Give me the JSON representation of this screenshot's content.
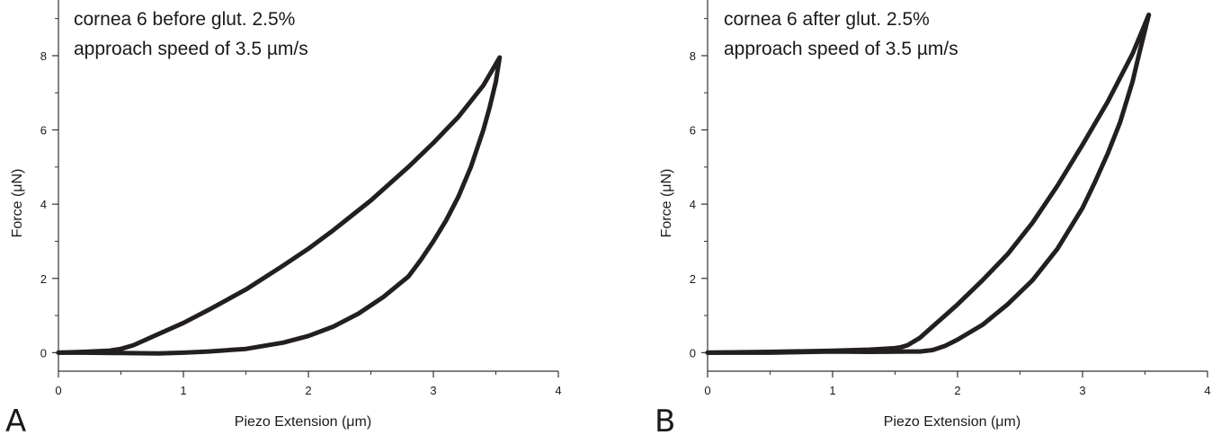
{
  "chart_data": [
    {
      "type": "line",
      "panel_label": "A",
      "annotation_lines": [
        "cornea 6  before glut. 2.5%",
        "approach speed of 3.5 µm/s"
      ],
      "xlabel": "Piezo Extension  (μm)",
      "ylabel": "Force (μN)",
      "xlim": [
        0,
        4
      ],
      "ylim": [
        -0.5,
        9.5
      ],
      "xticks": [
        0,
        1,
        2,
        3,
        4
      ],
      "yticks": [
        0,
        2,
        4,
        6,
        8
      ],
      "grid": false,
      "series": [
        {
          "x": [
            0,
            0.2,
            0.4,
            0.5,
            0.6,
            0.8,
            1.0,
            1.2,
            1.5,
            1.8,
            2.0,
            2.2,
            2.5,
            2.8,
            3.0,
            3.2,
            3.4,
            3.53
          ],
          "y": [
            0,
            0.02,
            0.05,
            0.1,
            0.2,
            0.5,
            0.8,
            1.15,
            1.7,
            2.35,
            2.8,
            3.3,
            4.1,
            5.0,
            5.65,
            6.35,
            7.2,
            7.95
          ]
        },
        {
          "x": [
            3.53,
            3.5,
            3.45,
            3.4,
            3.3,
            3.2,
            3.1,
            3.0,
            2.9,
            2.8,
            2.6,
            2.4,
            2.2,
            2.0,
            1.8,
            1.5,
            1.2,
            1.0,
            0.8,
            0.5,
            0.2,
            0.0
          ],
          "y": [
            7.95,
            7.3,
            6.6,
            6.0,
            5.0,
            4.2,
            3.55,
            3.0,
            2.5,
            2.05,
            1.5,
            1.05,
            0.7,
            0.45,
            0.27,
            0.1,
            0.03,
            0.0,
            -0.02,
            -0.01,
            0.0,
            0.0
          ]
        }
      ]
    },
    {
      "type": "line",
      "panel_label": "B",
      "annotation_lines": [
        "cornea 6   after glut. 2.5%",
        "approach speed of 3.5 µm/s"
      ],
      "xlabel": "Piezo Extension  (μm)",
      "ylabel": "Force (μN)",
      "xlim": [
        0,
        4
      ],
      "ylim": [
        -0.5,
        9.5
      ],
      "xticks": [
        0,
        1,
        2,
        3,
        4
      ],
      "yticks": [
        0,
        2,
        4,
        6,
        8
      ],
      "grid": false,
      "series": [
        {
          "x": [
            0,
            0.5,
            1.0,
            1.3,
            1.5,
            1.55,
            1.6,
            1.7,
            1.8,
            1.9,
            2.0,
            2.2,
            2.4,
            2.6,
            2.8,
            3.0,
            3.2,
            3.4,
            3.53
          ],
          "y": [
            0,
            0.02,
            0.05,
            0.08,
            0.12,
            0.15,
            0.2,
            0.4,
            0.7,
            1.0,
            1.3,
            1.95,
            2.65,
            3.5,
            4.5,
            5.6,
            6.75,
            8.05,
            9.1
          ]
        },
        {
          "x": [
            3.53,
            3.45,
            3.4,
            3.3,
            3.2,
            3.1,
            3.0,
            2.8,
            2.6,
            2.4,
            2.2,
            2.0,
            1.9,
            1.8,
            1.7,
            1.6,
            1.3,
            1.0,
            0.5,
            0.0
          ],
          "y": [
            9.1,
            8.0,
            7.3,
            6.2,
            5.35,
            4.6,
            3.9,
            2.8,
            1.95,
            1.3,
            0.75,
            0.35,
            0.18,
            0.07,
            0.03,
            0.03,
            0.02,
            0.03,
            0.0,
            0.0
          ]
        }
      ]
    }
  ]
}
